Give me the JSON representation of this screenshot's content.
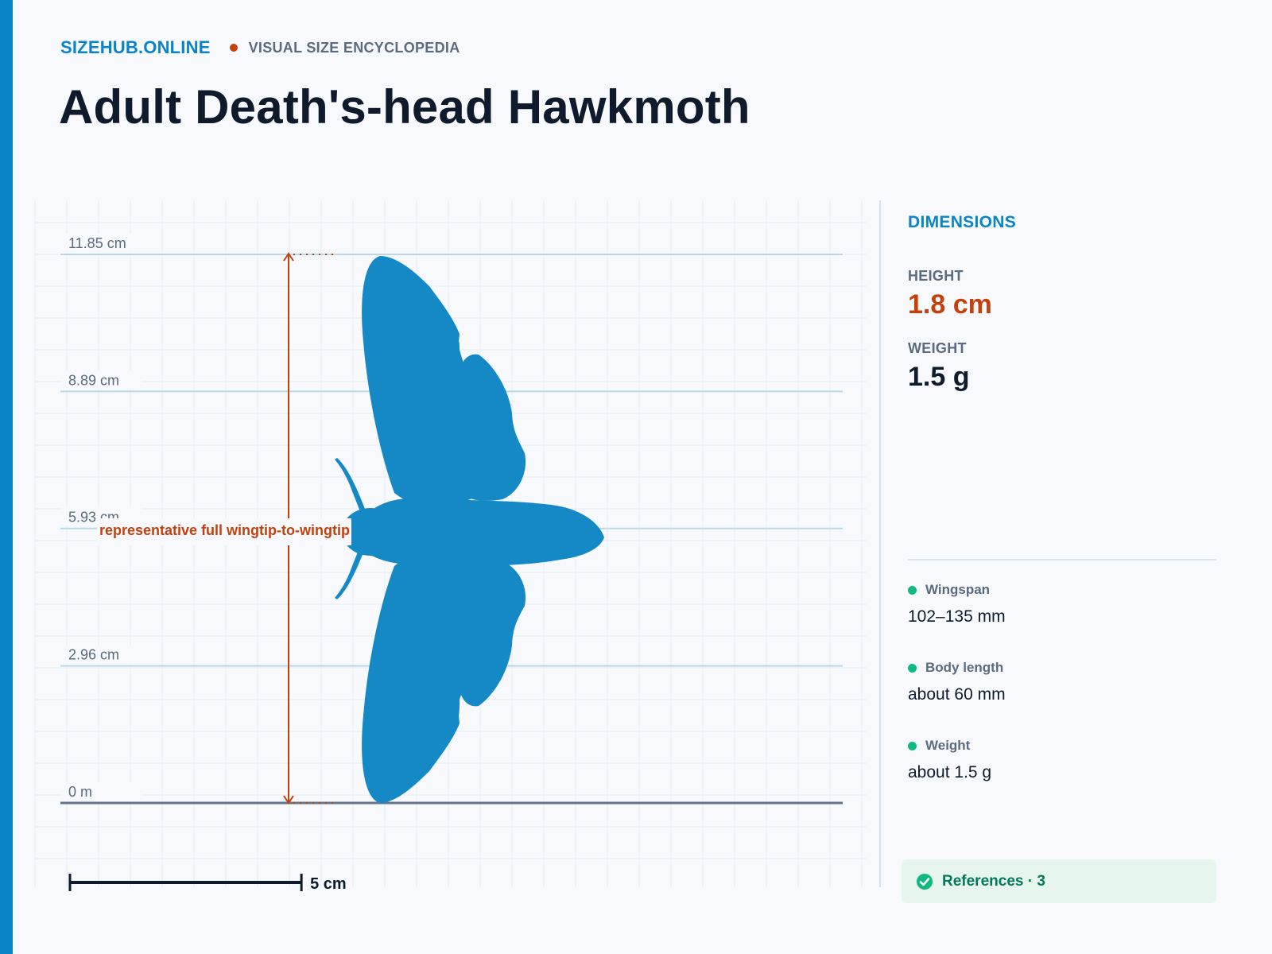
{
  "header": {
    "brand": "SIZEHUB.ONLINE",
    "tagline": "VISUAL SIZE ENCYCLOPEDIA",
    "title": "Adult Death's-head Hawkmoth"
  },
  "diagram": {
    "ticks": [
      {
        "label": "11.85 cm",
        "value_cm": 11.85
      },
      {
        "label": "8.89 cm",
        "value_cm": 8.89
      },
      {
        "label": "5.93 cm",
        "value_cm": 5.93
      },
      {
        "label": "2.96 cm",
        "value_cm": 2.96
      },
      {
        "label": "0 m",
        "value_cm": 0
      }
    ],
    "max_cm": 11.85,
    "measure_label": "representative full wingtip-to-wingtip",
    "scale_bar_label": "5 cm",
    "scale_bar_cm": 5,
    "silhouette_color": "#1589c6",
    "measure_color": "#c2410c"
  },
  "panel": {
    "heading": "DIMENSIONS",
    "height_label": "HEIGHT",
    "height_value": "1.8 cm",
    "weight_label": "WEIGHT",
    "weight_value": "1.5 g",
    "facts": [
      {
        "label": "Wingspan",
        "value": "102–135 mm"
      },
      {
        "label": "Body length",
        "value": "about 60 mm"
      },
      {
        "label": "Weight",
        "value": "about 1.5 g"
      }
    ],
    "references_label": "References · 3"
  },
  "colors": {
    "accent": "#0a84c6",
    "highlight": "#c2410c",
    "fact_dot": "#10b981"
  }
}
